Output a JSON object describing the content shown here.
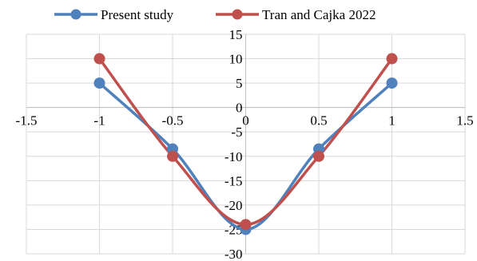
{
  "chart_data": {
    "type": "scatter",
    "xlim": [
      -1.5,
      1.5
    ],
    "ylim": [
      -30,
      15
    ],
    "xticks": [
      "-1.5",
      "-1",
      "-0.5",
      "0",
      "0.5",
      "1",
      "1.5"
    ],
    "yticks": [
      "15",
      "10",
      "5",
      "0",
      "-5",
      "-10",
      "-15",
      "-20",
      "-25",
      "-30"
    ],
    "grid": true,
    "legend_position": "top",
    "series": [
      {
        "name": "Present study",
        "color": "#4f81bd",
        "x": [
          -1,
          -0.5,
          0,
          0.5,
          1
        ],
        "y": [
          5,
          -8.5,
          -25,
          -8.5,
          5
        ]
      },
      {
        "name": "Tran and Cajka 2022",
        "color": "#c0504d",
        "x": [
          -1,
          -0.5,
          0,
          0.5,
          1
        ],
        "y": [
          10,
          -10,
          -24,
          -10,
          10
        ]
      }
    ]
  }
}
